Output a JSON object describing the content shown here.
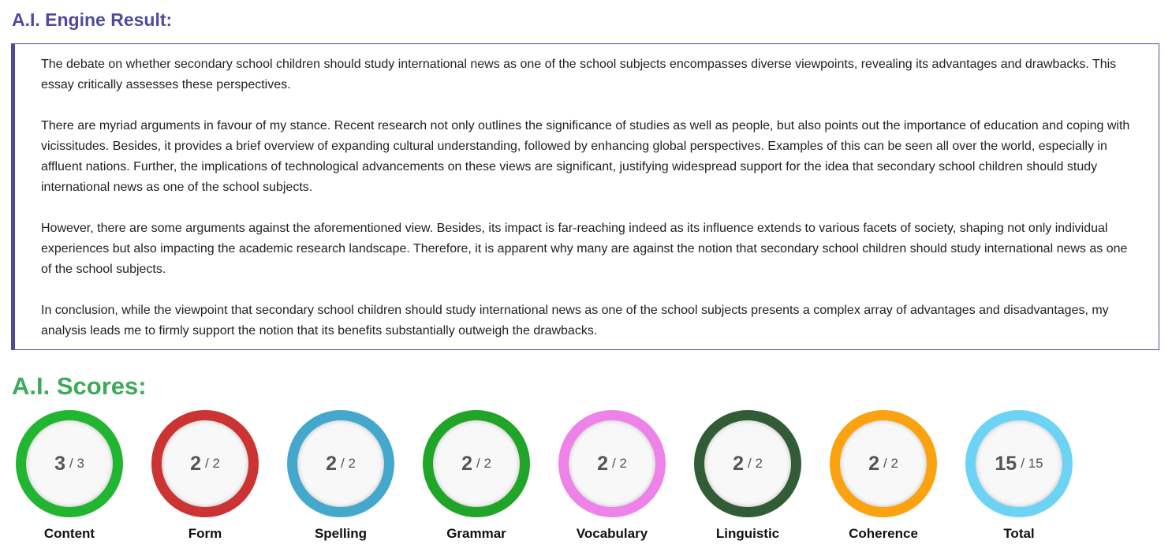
{
  "header": {
    "title": "A.I. Engine Result:"
  },
  "essay": {
    "paragraphs": [
      "The debate on whether secondary school children should study international news as one of the school subjects encompasses diverse viewpoints, revealing its advantages and drawbacks. This essay critically assesses these perspectives.",
      "There are myriad arguments in favour of my stance. Recent research not only outlines the significance of studies as well as people, but also points out the importance of education and coping with vicissitudes. Besides, it provides a brief overview of expanding cultural understanding, followed by enhancing global perspectives. Examples of this can be seen all over the world, especially in affluent nations. Further, the implications of technological advancements on these views are significant, justifying widespread support for the idea that secondary school children should study international news as one of the school subjects.",
      "However, there are some arguments against the aforementioned view. Besides, its impact is far-reaching indeed as its influence extends to various facets of society, shaping not only individual experiences but also impacting the academic research landscape. Therefore, it is apparent why many are against the notion that secondary school children should study international news as one of the school subjects.",
      "In conclusion, while the viewpoint that secondary school children should study international news as one of the school subjects presents a complex array of advantages and disadvantages, my analysis leads me to firmly support the notion that its benefits substantially outweigh the drawbacks."
    ]
  },
  "scores": {
    "title": "A.I. Scores:",
    "separator": "/",
    "items": [
      {
        "label": "Content",
        "score": 3,
        "max": 3,
        "color": "#22b532"
      },
      {
        "label": "Form",
        "score": 2,
        "max": 2,
        "color": "#cc3333"
      },
      {
        "label": "Spelling",
        "score": 2,
        "max": 2,
        "color": "#43a8cc"
      },
      {
        "label": "Grammar",
        "score": 2,
        "max": 2,
        "color": "#21a528"
      },
      {
        "label": "Vocabulary",
        "score": 2,
        "max": 2,
        "color": "#ee82e8"
      },
      {
        "label": "Linguistic",
        "score": 2,
        "max": 2,
        "color": "#325c36"
      },
      {
        "label": "Coherence",
        "score": 2,
        "max": 2,
        "color": "#fba210"
      },
      {
        "label": "Total",
        "score": 15,
        "max": 15,
        "color": "#6dd3f5"
      }
    ]
  }
}
